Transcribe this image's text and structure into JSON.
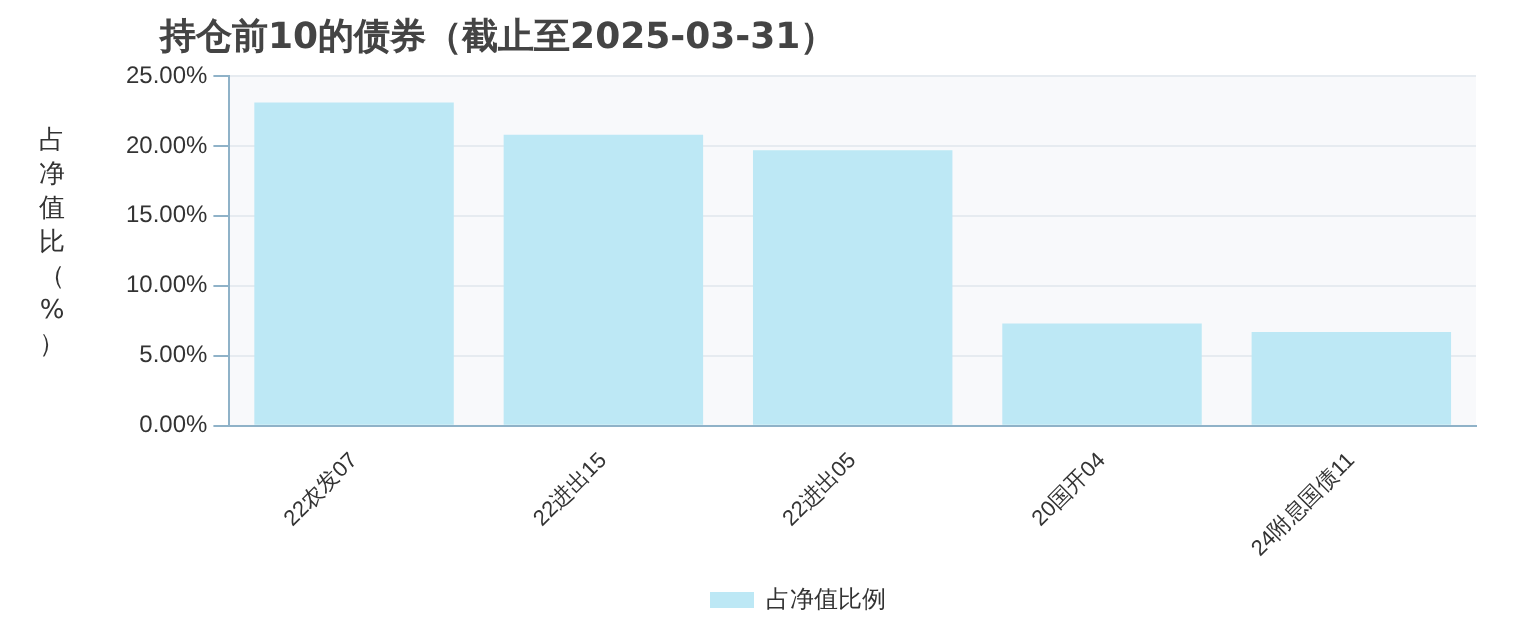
{
  "chart_data": {
    "type": "bar",
    "title": "持仓前10的债券（截止至2025-03-31）",
    "ylabel": "占净值比（%）",
    "categories": [
      "22农发07",
      "22进出15",
      "22进出05",
      "20国开04",
      "24附息国债11"
    ],
    "series": [
      {
        "name": "占净值比例",
        "color": "#bde8f5",
        "values": [
          23.1,
          20.8,
          19.7,
          7.3,
          6.7
        ]
      }
    ],
    "ylim": [
      0,
      25
    ],
    "yticks": [
      {
        "value": 0,
        "label": "0.00%"
      },
      {
        "value": 5,
        "label": "5.00%"
      },
      {
        "value": 10,
        "label": "10.00%"
      },
      {
        "value": 15,
        "label": "15.00%"
      },
      {
        "value": 20,
        "label": "20.00%"
      },
      {
        "value": 25,
        "label": "25.00%"
      }
    ],
    "grid": "y",
    "legend": "bottom"
  }
}
